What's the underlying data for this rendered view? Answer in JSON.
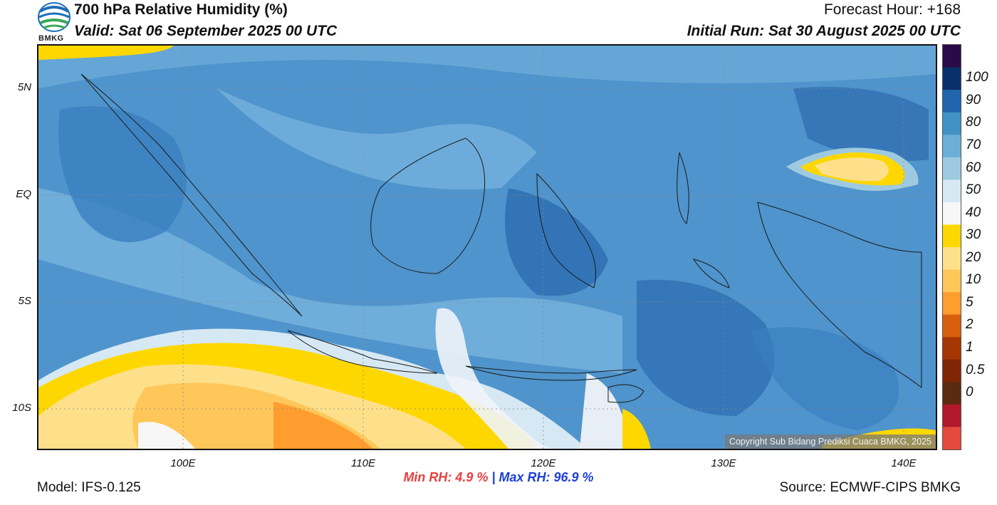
{
  "header": {
    "logo_text": "BMKG",
    "title": "700 hPa Relative Humidity (%)",
    "valid": "Valid: Sat 06 September 2025 00 UTC",
    "forecast_hour": "Forecast Hour: +168",
    "initial_run": "Initial Run: Sat 30 August 2025 00 UTC"
  },
  "axes": {
    "lat_labels": [
      "5N",
      "EQ",
      "5S",
      "10S"
    ],
    "lon_labels": [
      "100E",
      "110E",
      "120E",
      "130E",
      "140E"
    ]
  },
  "colorbar": {
    "labels": [
      "100",
      "90",
      "80",
      "70",
      "60",
      "50",
      "40",
      "30",
      "20",
      "10",
      "5",
      "2",
      "1",
      "0.5",
      "0"
    ],
    "colors": [
      "#2b0a4a",
      "#08306b",
      "#2166ac",
      "#4292c6",
      "#6baed6",
      "#9ecae1",
      "#d6e8f3",
      "#f7f7f7",
      "#ffd700",
      "#ffe08a",
      "#ffc75a",
      "#ff9d2e",
      "#d95f0e",
      "#a63603",
      "#7f2704",
      "#5c2a0e",
      "#b2182b",
      "#e64a3c"
    ]
  },
  "stats": {
    "min": "Min RH:   4.9 %",
    "separator": " | ",
    "max": "Max RH:  96.9 %"
  },
  "footer": {
    "model": "Model: IFS-0.125",
    "source": "Source: ECMWF-CIPS BMKG",
    "copyright": "Copyright Sub Bidang Prediksi Cuaca BMKG, 2025"
  }
}
